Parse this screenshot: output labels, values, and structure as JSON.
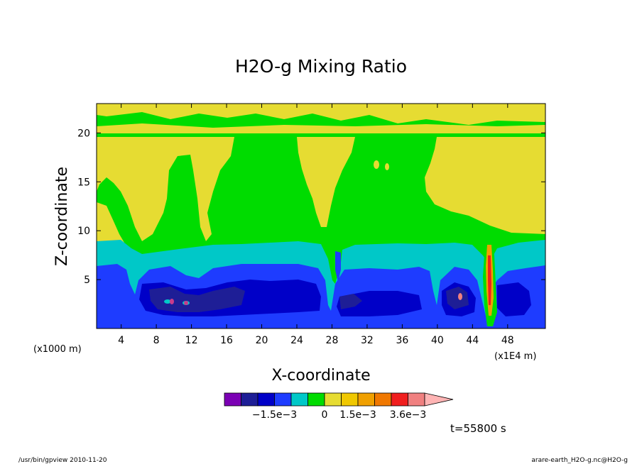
{
  "chart_data": {
    "type": "heatmap",
    "title": "H2O-g Mixing Ratio",
    "xlabel": "X-coordinate",
    "ylabel": "Z-coordinate",
    "x_unit": "(x1E4 m)",
    "y_unit": "(x1000 m)",
    "x_ticks": [
      "4",
      "8",
      "12",
      "16",
      "20",
      "24",
      "28",
      "32",
      "36",
      "40",
      "44",
      "48"
    ],
    "x_tick_values": [
      4,
      8,
      12,
      16,
      20,
      24,
      28,
      32,
      36,
      40,
      44,
      48
    ],
    "y_ticks": [
      "5",
      "10",
      "15",
      "20"
    ],
    "y_tick_values": [
      5,
      10,
      15,
      20
    ],
    "xlim": [
      1.2,
      52.3
    ],
    "ylim": [
      0,
      23
    ],
    "colorbar": {
      "colors": [
        "#7b00b4",
        "#1e1e96",
        "#0000c8",
        "#1e3cff",
        "#00c8c8",
        "#00dc00",
        "#e6dc32",
        "#f0c800",
        "#f0a000",
        "#f07800",
        "#f01e1e",
        "#f08080",
        "#ffb4b4"
      ],
      "labels": [
        "−1.5e−3",
        "0",
        "1.5e−3",
        "3.6e−3"
      ],
      "label_boxes": [
        3,
        6,
        8,
        11
      ]
    },
    "band_colors": {
      "deep_blue": "#1e1e96",
      "blue": "#0000c8",
      "light_blue": "#1e3cff",
      "cyan": "#00c8c8",
      "green": "#00dc00",
      "yellow": "#e6dc32",
      "orange": "#f0a000",
      "red": "#f01e1e",
      "pink": "#f08080",
      "purple": "#c83c8c"
    },
    "time_label": "t=55800 s"
  },
  "footer": {
    "left": "/usr/bin/gpview   2010-11-20",
    "right": "arare-earth_H2O-g.nc@H2O-g"
  }
}
